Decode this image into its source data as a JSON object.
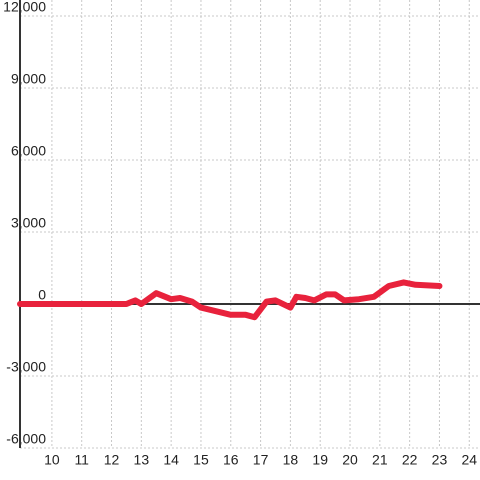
{
  "chart_data": {
    "type": "line",
    "x": [
      8.93,
      12.5,
      12.8,
      13.0,
      13.5,
      14.0,
      14.3,
      14.7,
      15.0,
      15.5,
      16.0,
      16.5,
      16.8,
      17.2,
      17.5,
      18.0,
      18.2,
      18.5,
      18.8,
      19.2,
      19.5,
      19.8,
      20.3,
      20.8,
      21.3,
      21.8,
      22.2,
      23.0
    ],
    "series": [
      {
        "color": "#e8223c",
        "values": [
          0,
          0,
          150,
          0,
          450,
          200,
          250,
          100,
          -150,
          -300,
          -450,
          -450,
          -550,
          100,
          150,
          -150,
          300,
          250,
          150,
          400,
          400,
          150,
          200,
          300,
          750,
          900,
          800,
          750
        ]
      }
    ],
    "xlim": [
      8.93,
      24.36
    ],
    "xticks": [
      10,
      11,
      12,
      13,
      14,
      15,
      16,
      17,
      18,
      19,
      20,
      21,
      22,
      23,
      24
    ],
    "ylim": [
      -6000,
      12000
    ],
    "yticks": [
      {
        "value": -6000,
        "label": "-6,000"
      },
      {
        "value": -3000,
        "label": "-3,000"
      },
      0,
      {
        "value": 3000,
        "label": "3,000"
      },
      {
        "value": 6000,
        "label": "6,000"
      },
      {
        "value": 9000,
        "label": "9,000"
      },
      {
        "value": 12000,
        "label": "12,000"
      }
    ],
    "grid": true
  }
}
